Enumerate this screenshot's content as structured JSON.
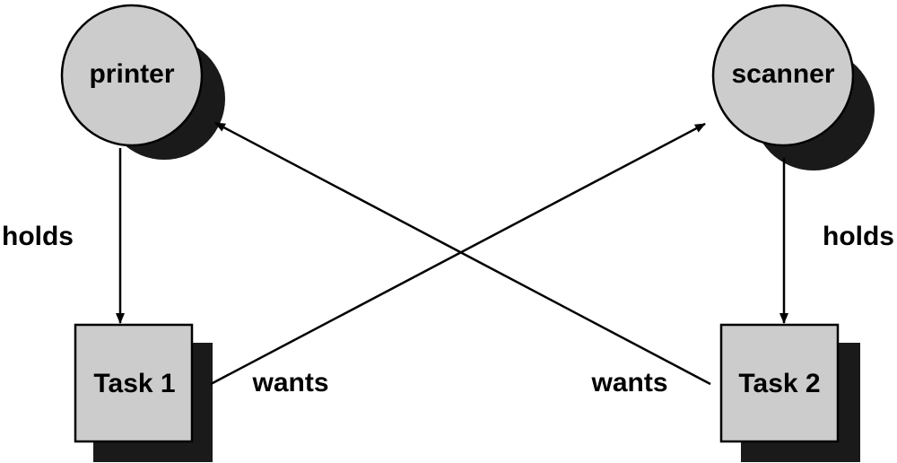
{
  "colors": {
    "node_fill": "#cccccc",
    "shadow": "#1a1a1a",
    "stroke": "#000000",
    "background": "#ffffff"
  },
  "nodes": {
    "printer": {
      "label": "printer",
      "shape": "circle"
    },
    "scanner": {
      "label": "scanner",
      "shape": "circle"
    },
    "task1": {
      "label": "Task 1",
      "shape": "square"
    },
    "task2": {
      "label": "Task 2",
      "shape": "square"
    }
  },
  "edges": [
    {
      "from": "printer",
      "to": "task1",
      "label": "holds"
    },
    {
      "from": "scanner",
      "to": "task2",
      "label": "holds"
    },
    {
      "from": "task1",
      "to": "scanner",
      "label": "wants"
    },
    {
      "from": "task2",
      "to": "printer",
      "label": "wants"
    }
  ]
}
